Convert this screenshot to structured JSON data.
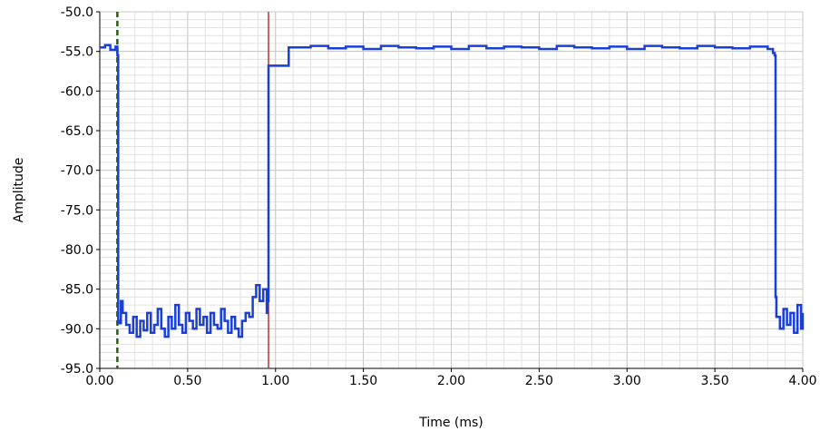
{
  "chart_data": {
    "type": "line",
    "xlabel": "Time (ms)",
    "ylabel": "Amplitude",
    "xlim": [
      0.0,
      4.0
    ],
    "ylim": [
      -95.0,
      -50.0
    ],
    "x_ticks": [
      "0.00",
      "0.50",
      "1.00",
      "1.50",
      "2.00",
      "2.50",
      "3.00",
      "3.50",
      "4.00"
    ],
    "y_ticks": [
      "-50.0",
      "-55.0",
      "-60.0",
      "-65.0",
      "-70.0",
      "-75.0",
      "-80.0",
      "-85.0",
      "-90.0",
      "-95.0"
    ],
    "grid": true,
    "minor_grid": true,
    "colors": {
      "series": "#1a3fd6",
      "cursor_red": "#c03030",
      "cursor_green": "#2e5a1a",
      "grid_major": "#c8c8c8",
      "grid_minor": "#e2e2e2"
    },
    "series": [
      {
        "x": [
          0.0,
          0.03,
          0.06,
          0.09,
          0.1,
          0.105,
          0.11,
          0.12,
          0.13,
          0.15,
          0.17,
          0.19,
          0.21,
          0.23,
          0.25,
          0.27,
          0.29,
          0.31,
          0.33,
          0.35,
          0.37,
          0.39,
          0.41,
          0.43,
          0.45,
          0.47,
          0.49,
          0.51,
          0.53,
          0.55,
          0.57,
          0.59,
          0.61,
          0.63,
          0.65,
          0.67,
          0.69,
          0.71,
          0.73,
          0.75,
          0.77,
          0.79,
          0.81,
          0.83,
          0.85,
          0.87,
          0.89,
          0.91,
          0.93,
          0.95,
          0.955,
          0.96,
          1.07,
          1.075,
          1.1,
          1.2,
          1.3,
          1.4,
          1.5,
          1.6,
          1.7,
          1.8,
          1.9,
          2.0,
          2.1,
          2.2,
          2.3,
          2.4,
          2.5,
          2.6,
          2.7,
          2.8,
          2.9,
          3.0,
          3.1,
          3.2,
          3.3,
          3.4,
          3.5,
          3.6,
          3.7,
          3.8,
          3.83,
          3.84,
          3.845,
          3.85,
          3.87,
          3.89,
          3.91,
          3.93,
          3.95,
          3.97,
          3.99,
          4.0
        ],
        "y": [
          -54.5,
          -54.2,
          -54.8,
          -54.4,
          -55.5,
          -89.0,
          -89.3,
          -86.5,
          -88.0,
          -89.5,
          -90.5,
          -88.5,
          -91.0,
          -89.0,
          -90.2,
          -88.0,
          -90.5,
          -89.5,
          -87.5,
          -90.0,
          -91.0,
          -88.5,
          -90.0,
          -87.0,
          -89.5,
          -90.5,
          -88.0,
          -89.0,
          -90.0,
          -87.5,
          -89.5,
          -88.5,
          -90.5,
          -88.0,
          -89.5,
          -90.0,
          -87.5,
          -89.0,
          -90.5,
          -88.5,
          -90.0,
          -91.0,
          -89.0,
          -88.0,
          -88.5,
          -86.0,
          -84.5,
          -86.5,
          -85.0,
          -88.0,
          -86.5,
          -56.8,
          -56.8,
          -54.5,
          -54.5,
          -54.3,
          -54.6,
          -54.4,
          -54.7,
          -54.3,
          -54.5,
          -54.6,
          -54.4,
          -54.7,
          -54.3,
          -54.6,
          -54.4,
          -54.5,
          -54.7,
          -54.3,
          -54.5,
          -54.6,
          -54.4,
          -54.7,
          -54.3,
          -54.5,
          -54.6,
          -54.3,
          -54.5,
          -54.6,
          -54.4,
          -54.7,
          -55.2,
          -55.5,
          -86.0,
          -88.5,
          -90.0,
          -87.5,
          -89.5,
          -88.0,
          -90.5,
          -87.0,
          -90.0,
          -88.0
        ]
      }
    ],
    "cursors": [
      {
        "x": 0.1,
        "style": "dashed",
        "color": "#2e5a1a"
      },
      {
        "x": 0.96,
        "style": "solid",
        "color": "#c03030"
      }
    ]
  }
}
